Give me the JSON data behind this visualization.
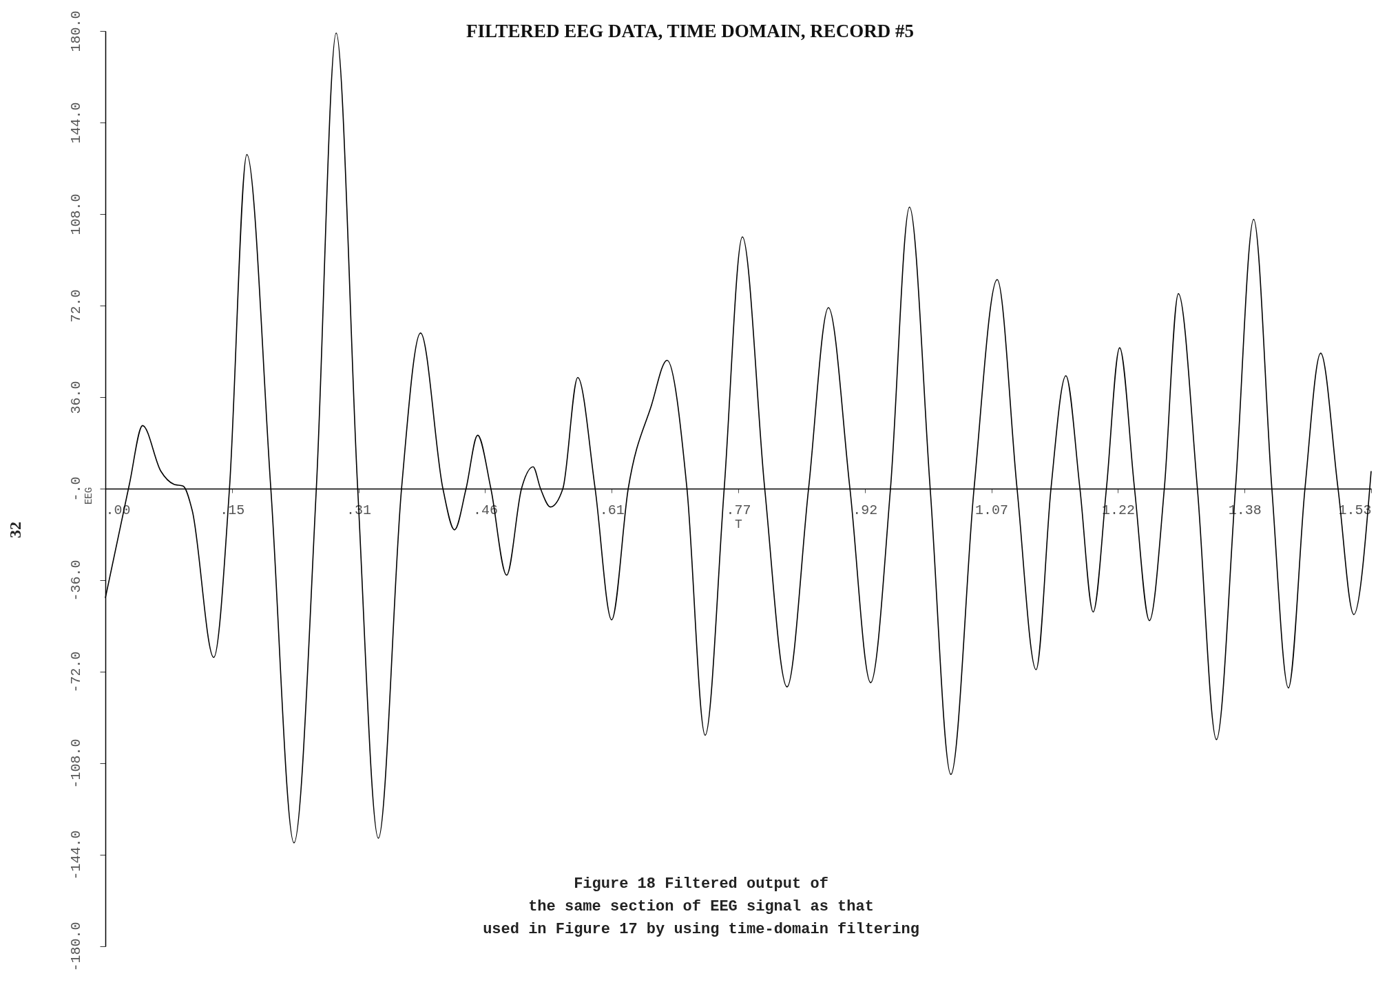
{
  "chart_data": {
    "type": "line",
    "title": "FILTERED EEG DATA, TIME DOMAIN, RECORD #5",
    "xlabel": "T",
    "ylabel": "EEG",
    "annotations": [
      "Figure 18    Filtered output of\nthe same section of EEG signal as that\nused in Figure 17 by using time-domain filtering",
      "32"
    ],
    "x": [
      0,
      0.029,
      0.045,
      0.067,
      0.083,
      0.094,
      0.105,
      0.131,
      0.15,
      0.171,
      0.2,
      0.228,
      0.255,
      0.279,
      0.305,
      0.33,
      0.358,
      0.381,
      0.408,
      0.422,
      0.436,
      0.45,
      0.466,
      0.485,
      0.503,
      0.517,
      0.526,
      0.538,
      0.553,
      0.571,
      0.592,
      0.612,
      0.632,
      0.66,
      0.679,
      0.703,
      0.725,
      0.748,
      0.77,
      0.797,
      0.824,
      0.85,
      0.874,
      0.9,
      0.925,
      0.949,
      0.972,
      0.997,
      1.022,
      1.05,
      1.078,
      1.102,
      1.125,
      1.143,
      1.161,
      1.178,
      1.194,
      1.21,
      1.226,
      1.244,
      1.262,
      1.28,
      1.297,
      1.32,
      1.343,
      1.366,
      1.388,
      1.41,
      1.43,
      1.45,
      1.469,
      1.49,
      1.509,
      1.53
    ],
    "series": [
      {
        "color": "#000000",
        "values": [
          -43,
          1.7,
          24.8,
          6.9,
          1.7,
          1,
          -8.6,
          -66.4,
          0,
          131.4,
          0,
          -139.3,
          0,
          179.2,
          0,
          -137.5,
          0,
          61.2,
          0,
          -16.2,
          0,
          21,
          0,
          -34,
          0,
          8.6,
          0,
          -7.2,
          0,
          43.7,
          0,
          -51.6,
          0,
          32.7,
          50.5,
          0,
          -97,
          0,
          99,
          0,
          -78,
          0,
          71.2,
          0,
          -76.3,
          0,
          110.7,
          0,
          -112.4,
          0,
          82.2,
          0,
          -71.2,
          0,
          44.4,
          0,
          -48.5,
          0,
          55.4,
          0,
          -51.9,
          0,
          76.7,
          0,
          -98.7,
          0,
          105.9,
          0,
          -78.4,
          0,
          53.3,
          0,
          -49.5,
          6.9
        ]
      }
    ],
    "xlim": [
      0,
      1.53
    ],
    "xticks": [
      {
        "value": 0,
        "label": ".00"
      },
      {
        "value": 0.153,
        "label": ".15"
      },
      {
        "value": 0.306,
        "label": ".31"
      },
      {
        "value": 0.459,
        "label": ".46"
      },
      {
        "value": 0.612,
        "label": ".61"
      },
      {
        "value": 0.765,
        "label": ".77"
      },
      {
        "value": 0.918,
        "label": ".92"
      },
      {
        "value": 1.071,
        "label": "1.07"
      },
      {
        "value": 1.224,
        "label": "1.22"
      },
      {
        "value": 1.377,
        "label": "1.38"
      },
      {
        "value": 1.53,
        "label": "1.53"
      }
    ],
    "ylim": [
      -180,
      180
    ],
    "yticks": [
      {
        "value": -180,
        "label": "-180.0"
      },
      {
        "value": -144,
        "label": "-144.0"
      },
      {
        "value": -108,
        "label": "-108.0"
      },
      {
        "value": -72,
        "label": "-72.0"
      },
      {
        "value": -36,
        "label": "-36.0"
      },
      {
        "value": 0,
        "label": "-.0"
      },
      {
        "value": 36,
        "label": "36.0"
      },
      {
        "value": 72,
        "label": "72.0"
      },
      {
        "value": 108,
        "label": "108.0"
      },
      {
        "value": 144,
        "label": "144.0"
      },
      {
        "value": 180,
        "label": "180.0"
      }
    ],
    "grid": false,
    "marker": "none",
    "line_style": "solid"
  }
}
